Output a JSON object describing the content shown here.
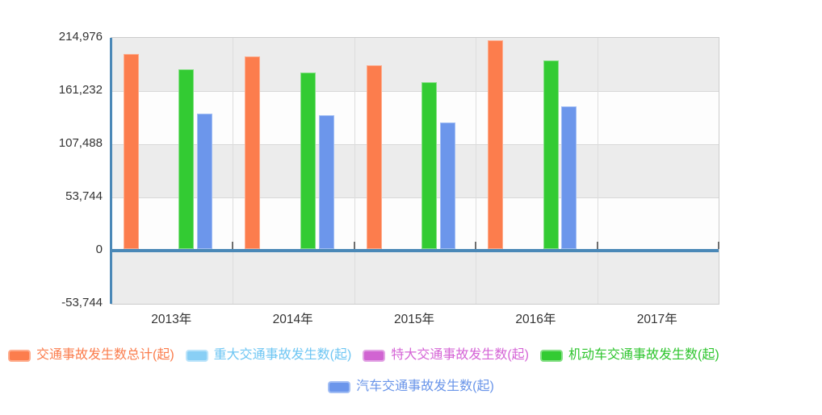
{
  "chart_data": {
    "type": "bar",
    "title": "",
    "xlabel": "",
    "ylabel": "",
    "categories": [
      "2013年",
      "2014年",
      "2015年",
      "2016年",
      "2017年"
    ],
    "series": [
      {
        "name": "交通事故发生数总计(起)",
        "color": "#FC7D4D",
        "border_color": "#FEAD8E",
        "values": [
          197000,
          194800,
          185800,
          210800,
          null
        ]
      },
      {
        "name": "重大交通事故发生数(起)",
        "color": "#89CFF5",
        "border_color": "#BCE4FA",
        "values": [
          0,
          0,
          0,
          0,
          null
        ]
      },
      {
        "name": "特大交通事故发生数(起)",
        "color": "#D164D2",
        "border_color": "#E2A5E4",
        "values": [
          0,
          0,
          0,
          0,
          null
        ]
      },
      {
        "name": "机动车交通事故发生数(起)",
        "color": "#33CB33",
        "border_color": "#85DF85",
        "values": [
          181800,
          178600,
          168900,
          190700,
          null
        ]
      },
      {
        "name": "汽车交通事故发生数(起)",
        "color": "#6C96EB",
        "border_color": "#A2BEF4",
        "values": [
          136700,
          134800,
          127600,
          144200,
          null
        ]
      }
    ],
    "y_ticks": [
      214976,
      161232,
      107488,
      53744,
      0,
      -53744
    ],
    "y_tick_labels": [
      "214,976",
      "161,232",
      "107,488",
      "53,744",
      "0",
      "-53,744"
    ],
    "ylim": [
      -53744,
      214976
    ],
    "grid": true,
    "legend_position": "bottom"
  },
  "legend": {
    "rows": [
      [
        0,
        1,
        2,
        3
      ],
      [
        4
      ]
    ],
    "text_colors": [
      "#FB7C4C",
      "#6EC6F3",
      "#D564D6",
      "#2EC52E",
      "#6A95E9"
    ]
  },
  "colors": {
    "axis_line": "#4A88B7",
    "zero_line": "#4A88B7",
    "band_gray": "#ECECEC",
    "band_light": "#FDFDFD",
    "h_gridline": "#D8D8D8",
    "v_gridline": "#DDDDDD",
    "plot_border": "#CCCCCC",
    "zero_tick": "#6E6E6E",
    "axis_label": "#333333"
  }
}
